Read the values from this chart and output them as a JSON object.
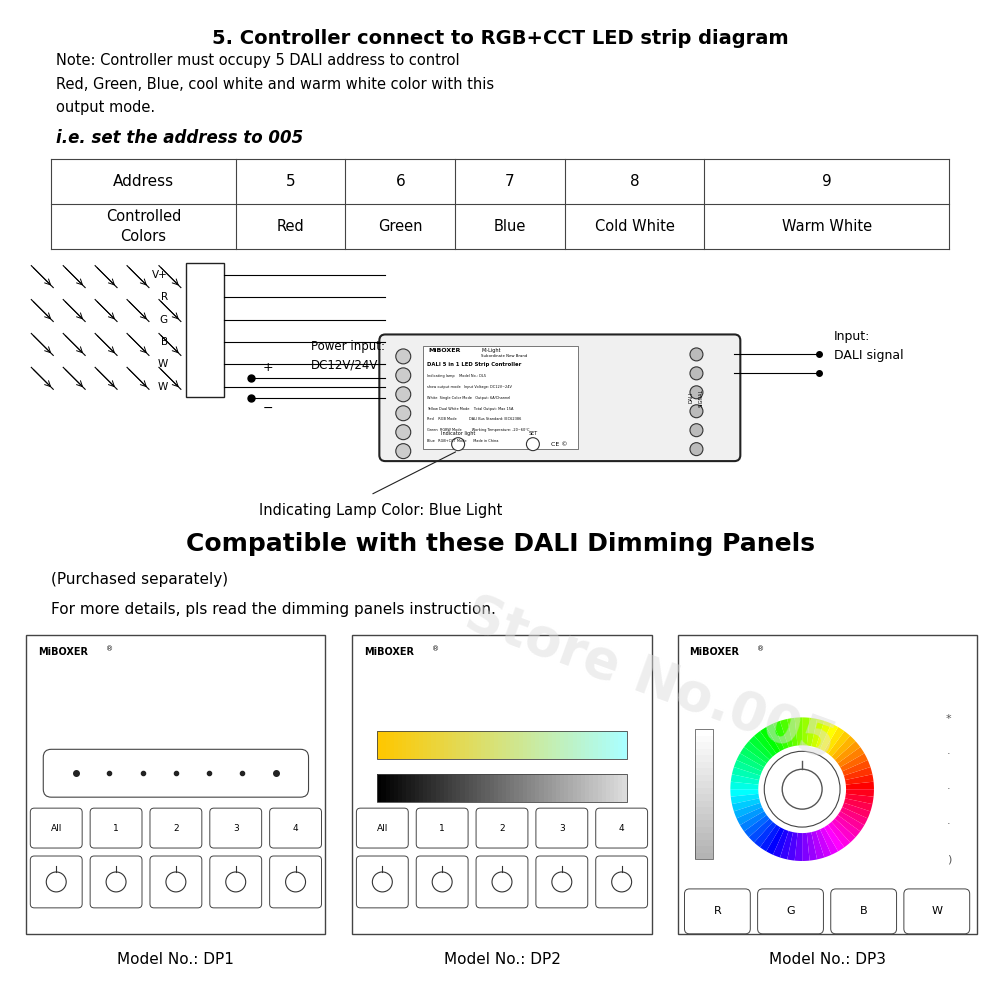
{
  "title": "5. Controller connect to RGB+CCT LED strip diagram",
  "note": "Note: Controller must occupy 5 DALI address to control\nRed, Green, Blue, cool white and warm white color with this\noutput mode.",
  "subtitle": "i.e. set the address to 005",
  "table_headers": [
    "Address",
    "5",
    "6",
    "7",
    "8",
    "9"
  ],
  "table_row": [
    "Controlled\nColors",
    "Red",
    "Green",
    "Blue",
    "Cold White",
    "Warm White"
  ],
  "power_label": "Power input:\nDC12V/24V",
  "input_label": "Input:\nDALI signal",
  "lamp_label": "Indicating Lamp Color: Blue Light",
  "compat_title": "Compatible with these DALI Dimming Panels",
  "purchased": "(Purchased separately)",
  "more_details": "For more details, pls read the dimming panels instruction.",
  "models": [
    "Model No.: DP1",
    "Model No.: DP2",
    "Model No.: DP3"
  ],
  "watermark": "Store No.005",
  "bg_color": "#ffffff",
  "text_color": "#000000",
  "border_color": "#333333"
}
